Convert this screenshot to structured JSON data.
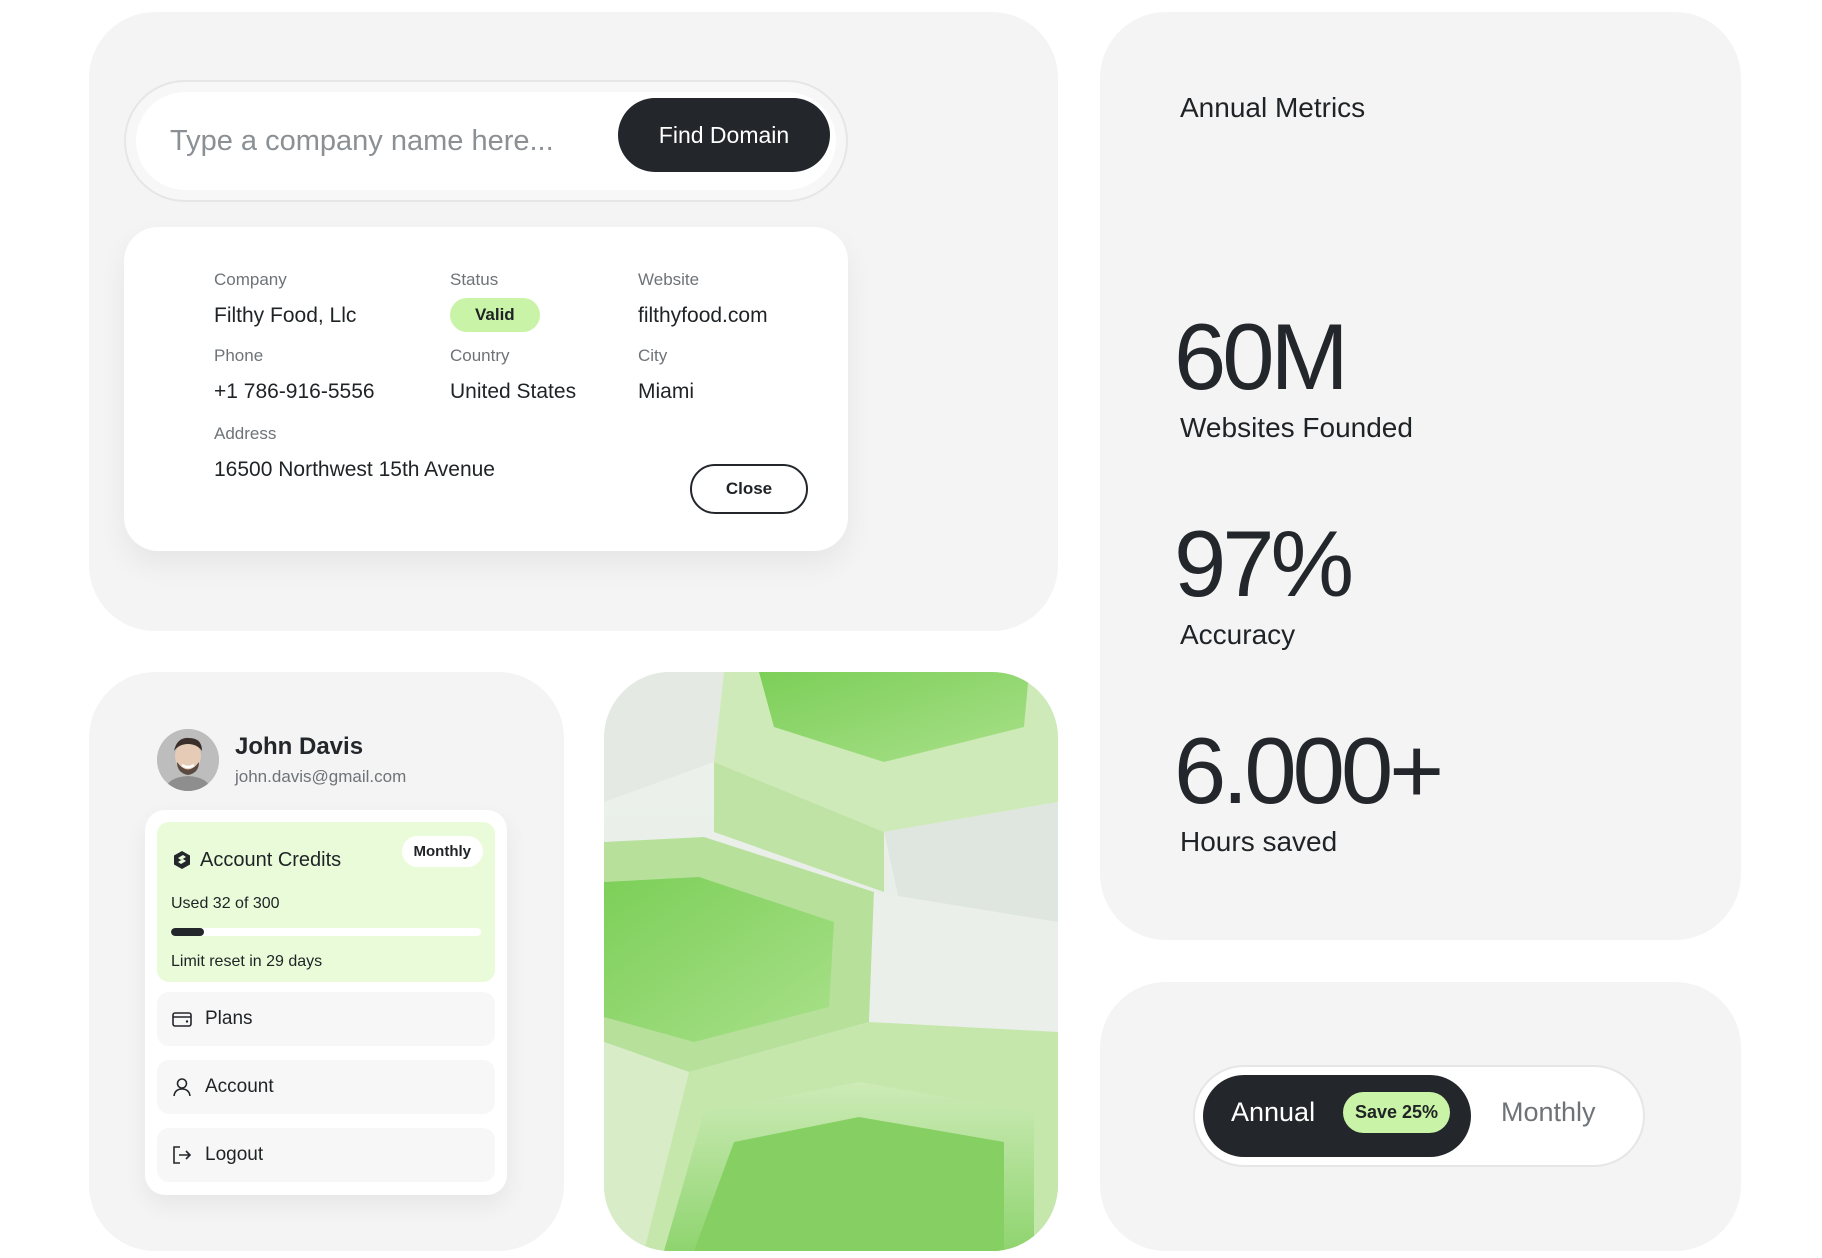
{
  "search": {
    "placeholder": "Type a company name here...",
    "value": "",
    "button_label": "Find Domain"
  },
  "company_card": {
    "company": {
      "label": "Company",
      "value": "Filthy Food, Llc"
    },
    "status": {
      "label": "Status",
      "value": "Valid",
      "color": "#c9f3a6"
    },
    "website": {
      "label": "Website",
      "value": "filthyfood.com"
    },
    "phone": {
      "label": "Phone",
      "value": "+1 786-916-5556"
    },
    "country": {
      "label": "Country",
      "value": "United States"
    },
    "city": {
      "label": "City",
      "value": "Miami"
    },
    "address": {
      "label": "Address",
      "value": "16500 Northwest 15th Avenue"
    },
    "close_label": "Close"
  },
  "metrics": {
    "title": "Annual Metrics",
    "items": [
      {
        "value": "60M",
        "label": "Websites Founded"
      },
      {
        "value": "97%",
        "label": "Accuracy"
      },
      {
        "value": "6.000+",
        "label": "Hours saved"
      }
    ]
  },
  "account": {
    "name": "John Davis",
    "email": "john.davis@gmail.com",
    "credits": {
      "title": "Account Credits",
      "period": "Monthly",
      "used_text": "Used 32 of 300",
      "used": 32,
      "total": 300,
      "reset_text": "Limit reset in 29 days",
      "icon": "credits-icon"
    },
    "menu": [
      {
        "label": "Plans",
        "icon": "wallet-icon"
      },
      {
        "label": "Account",
        "icon": "user-icon"
      },
      {
        "label": "Logout",
        "icon": "logout-icon"
      }
    ]
  },
  "billing": {
    "annual_label": "Annual",
    "save_badge": "Save 25%",
    "monthly_label": "Monthly",
    "selected": "Annual"
  },
  "colors": {
    "accent": "#c9f3a6",
    "dark": "#23272b",
    "panel_bg": "#f4f4f4"
  }
}
